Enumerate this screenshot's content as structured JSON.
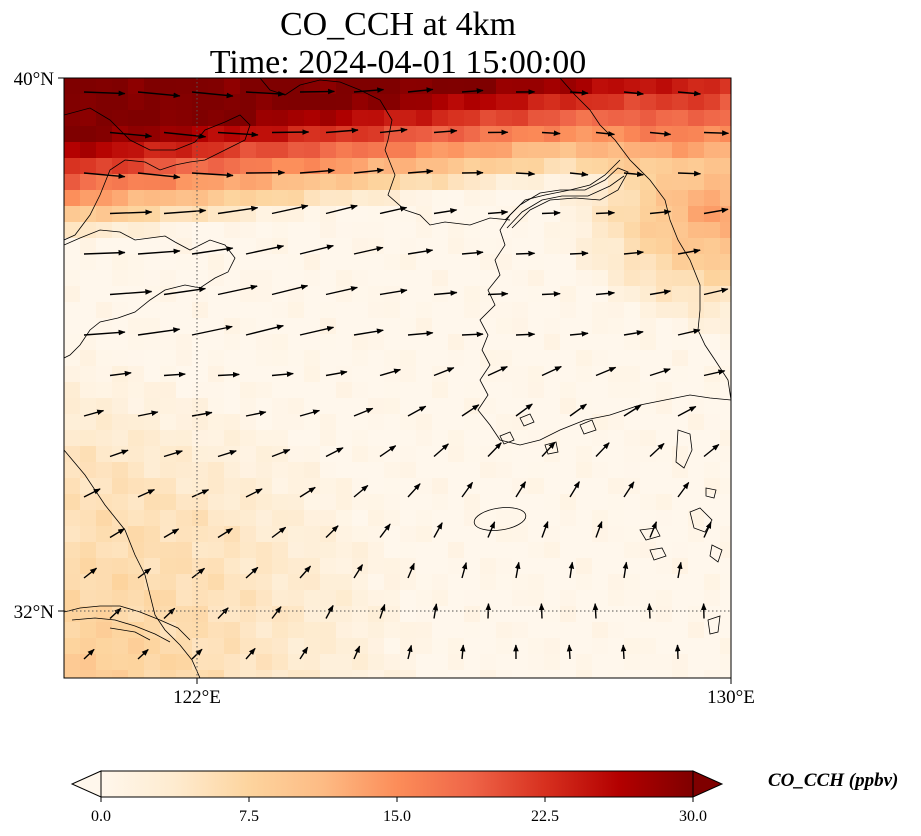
{
  "title": {
    "line1": "CO_CCH at 4km",
    "line2": "Time: 2024-04-01 15:00:00"
  },
  "map": {
    "lon_range": [
      120,
      130
    ],
    "lat_range": [
      31,
      40
    ],
    "lat_ticks": [
      {
        "value": 40,
        "label": "40°N"
      },
      {
        "value": 32,
        "label": "32°N"
      }
    ],
    "lon_ticks": [
      {
        "value": 122,
        "label": "122°E"
      },
      {
        "value": 130,
        "label": "130°E"
      }
    ],
    "gridlines": {
      "lats": [
        32
      ],
      "lons": [
        122
      ],
      "style": "dotted"
    },
    "field_description_values_ppbv": {
      "north_band_max": 30,
      "southwest_corner": 9,
      "central_min": 0
    }
  },
  "colorbar": {
    "label": "CO_CCH (ppbv)",
    "colormap": "OrRd",
    "range": [
      0,
      30
    ],
    "extend": "both",
    "ticks": [
      "0.0",
      "7.5",
      "15.0",
      "22.5",
      "30.0"
    ]
  },
  "colors": {
    "max": "#7f0000",
    "high": "#d7301f",
    "mid": "#fc8d59",
    "low": "#fdd49e",
    "min": "#fff7ec"
  }
}
